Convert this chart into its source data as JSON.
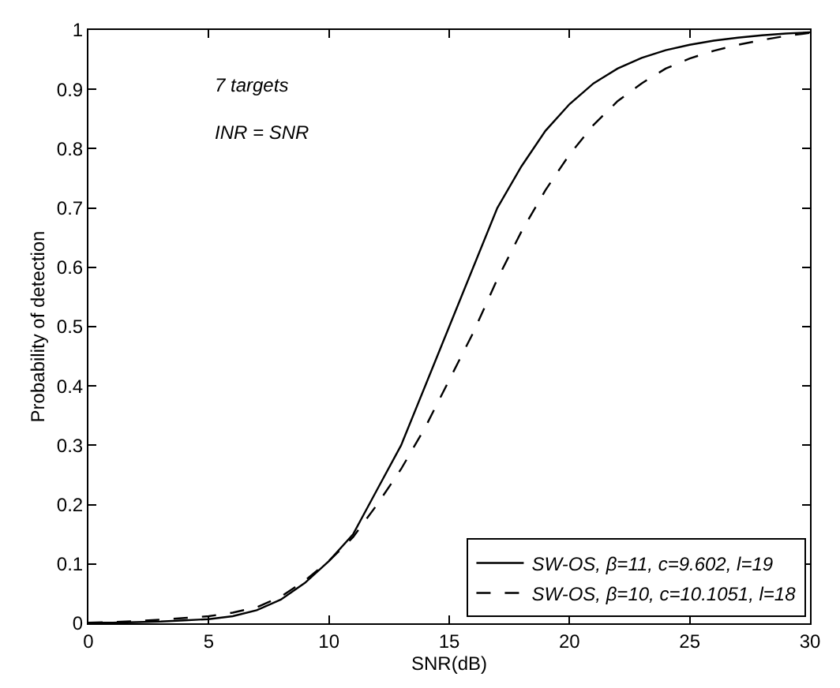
{
  "chart_data": {
    "type": "line",
    "xlabel": "SNR(dB)",
    "ylabel": "Probability of detection",
    "x": [
      0,
      1,
      2,
      3,
      4,
      5,
      6,
      7,
      8,
      9,
      10,
      11,
      12,
      13,
      14,
      15,
      16,
      17,
      18,
      19,
      20,
      21,
      22,
      23,
      24,
      25,
      26,
      27,
      28,
      29,
      30
    ],
    "series": [
      {
        "name": "SW-OS, β=11, c=9.602, l=19",
        "color": "#000000",
        "line_style": "solid",
        "values": [
          0.001,
          0.001,
          0.002,
          0.003,
          0.005,
          0.007,
          0.012,
          0.022,
          0.04,
          0.068,
          0.105,
          0.15,
          0.225,
          0.3,
          0.4,
          0.5,
          0.6,
          0.7,
          0.77,
          0.83,
          0.875,
          0.91,
          0.935,
          0.953,
          0.966,
          0.975,
          0.982,
          0.987,
          0.991,
          0.994,
          0.996
        ]
      },
      {
        "name": "SW-OS, β=10, c=10.1051, l=18",
        "color": "#000000",
        "line_style": "dashed",
        "values": [
          0.001,
          0.002,
          0.004,
          0.006,
          0.009,
          0.012,
          0.018,
          0.027,
          0.045,
          0.072,
          0.105,
          0.145,
          0.2,
          0.26,
          0.33,
          0.41,
          0.49,
          0.58,
          0.66,
          0.73,
          0.79,
          0.84,
          0.88,
          0.91,
          0.935,
          0.952,
          0.965,
          0.975,
          0.983,
          0.99,
          0.995
        ]
      }
    ],
    "annotations": [
      "7 targets",
      "INR = SNR"
    ],
    "xlim": [
      0,
      30
    ],
    "xticks": [
      0,
      5,
      10,
      15,
      20,
      25,
      30
    ],
    "ylim": [
      0,
      1
    ],
    "yticks": [
      0,
      0.1,
      0.2,
      0.3,
      0.4,
      0.5,
      0.6,
      0.7,
      0.8,
      0.9,
      1
    ],
    "legend": "bottom right",
    "marker": "none"
  }
}
